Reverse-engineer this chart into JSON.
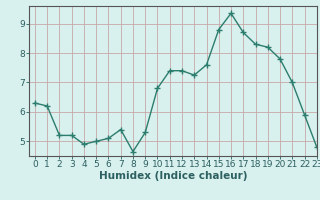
{
  "x": [
    0,
    1,
    2,
    3,
    4,
    5,
    6,
    7,
    8,
    9,
    10,
    11,
    12,
    13,
    14,
    15,
    16,
    17,
    18,
    19,
    20,
    21,
    22,
    23
  ],
  "y": [
    6.3,
    6.2,
    5.2,
    5.2,
    4.9,
    5.0,
    5.1,
    5.4,
    4.65,
    5.3,
    6.8,
    7.4,
    7.4,
    7.25,
    7.6,
    8.8,
    9.35,
    8.7,
    8.3,
    8.2,
    7.8,
    7.0,
    5.9,
    4.8
  ],
  "xlabel": "Humidex (Indice chaleur)",
  "xlim": [
    -0.5,
    23
  ],
  "ylim": [
    4.5,
    9.6
  ],
  "yticks": [
    5,
    6,
    7,
    8,
    9
  ],
  "xtick_labels": [
    "0",
    "1",
    "2",
    "3",
    "4",
    "5",
    "6",
    "7",
    "8",
    "9",
    "10",
    "11",
    "12",
    "13",
    "14",
    "15",
    "16",
    "17",
    "18",
    "19",
    "20",
    "21",
    "22",
    "23"
  ],
  "line_color": "#2d7d6e",
  "marker": "+",
  "marker_size": 4,
  "background_color": "#d8f0ee",
  "grid_color": "#c8a8a8",
  "tick_fontsize": 6.5,
  "xlabel_fontsize": 7.5
}
